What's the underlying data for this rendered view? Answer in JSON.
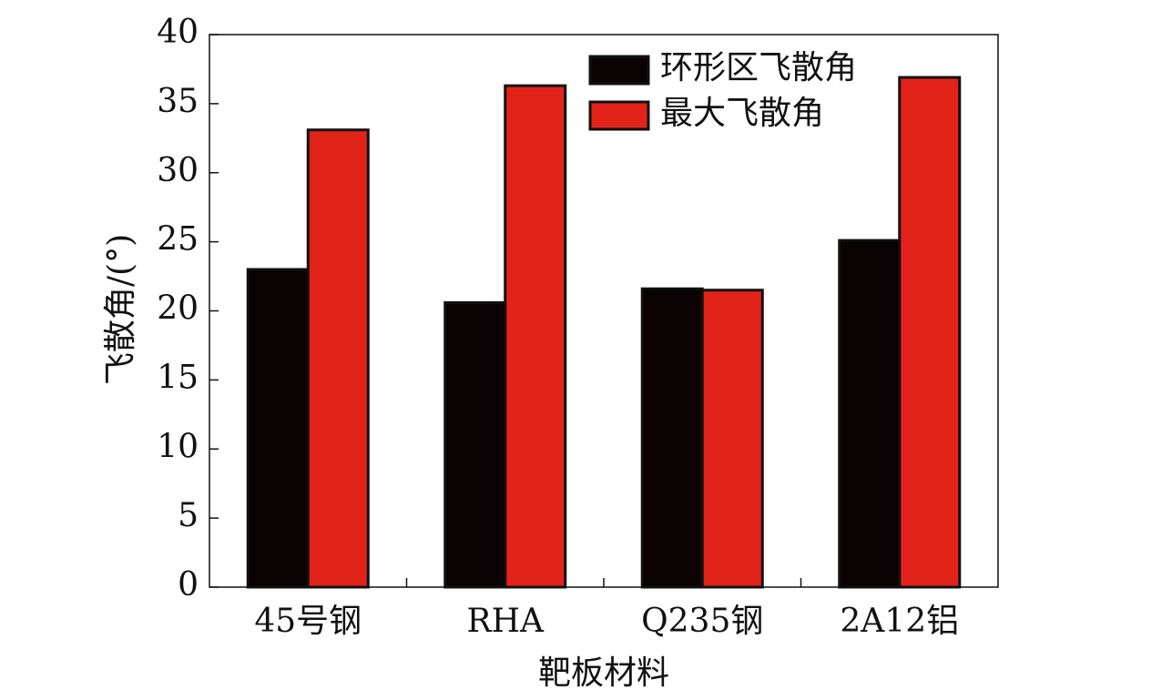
{
  "chart_data": {
    "type": "bar",
    "categories": [
      "45号钢",
      "RHA",
      "Q235钢",
      "2A12铝"
    ],
    "series": [
      {
        "name": "环形区飞散角",
        "color": "#0a0203",
        "values": [
          23,
          20.6,
          21.6,
          25.1
        ]
      },
      {
        "name": "最大飞散角",
        "color": "#e2231a",
        "values": [
          33.1,
          36.3,
          21.5,
          36.9
        ]
      }
    ],
    "x_label": "靶板材料",
    "y_label": "飞散角/(°)",
    "ylim": [
      0,
      40
    ],
    "yticks": [
      0,
      5,
      10,
      15,
      20,
      25,
      30,
      35,
      40
    ],
    "legend": "upper right"
  }
}
